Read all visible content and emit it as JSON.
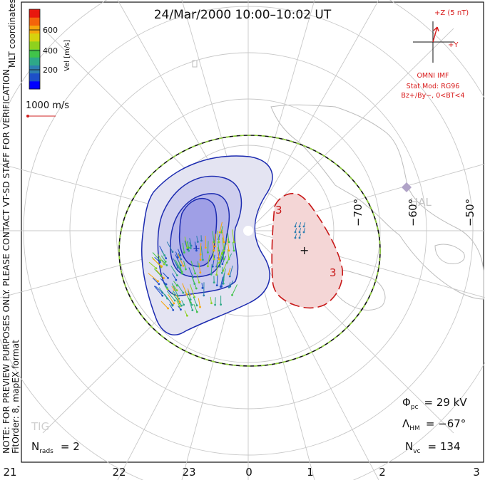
{
  "title": "24/Mar/2000 10:00–10:02 UT",
  "side_notes": {
    "mlt_coordinates": "MLT coordinates",
    "preview_note": "NOTE: FOR PREVIEW PURPOSES ONLY. PLEASE CONTACT VT-SD STAFF FOR VERIFICATION.",
    "fit_order": "FitOrder: 8, mapEX format"
  },
  "colorbar": {
    "label": "Vel [m/s]",
    "ticks": [
      "600",
      "400",
      "200"
    ],
    "colors": [
      "#0000ff",
      "#1d4fc8",
      "#2e7fb0",
      "#2ea888",
      "#41c34a",
      "#8ed11e",
      "#d6d20e",
      "#f5a60c",
      "#f4640b",
      "#e8180e"
    ]
  },
  "scale_vector": {
    "label": "1000 m/s",
    "color": "#d02020"
  },
  "imf": {
    "z_label": "+Z (5 nT)",
    "y_label": "+Y",
    "source": "OMNI IMF",
    "stat_mod": "Stat Mod: RG96",
    "condition": "Bz+/By−, 0<BT<4",
    "color": "#d81a1a"
  },
  "stations": {
    "hal": "HAL",
    "tig": "TIG"
  },
  "latitude_labels": [
    "−70°",
    "−60°",
    "−50°"
  ],
  "contour_labels": [
    "3",
    "3"
  ],
  "mlt_labels": [
    "21",
    "22",
    "23",
    "0",
    "1",
    "2",
    "3"
  ],
  "stats": {
    "phi_symbol": "Φ",
    "phi_sub": "pc",
    "phi_value": "= 29 kV",
    "lambda_symbol": "Λ",
    "lambda_sub": "HM",
    "lambda_value": "= −67°",
    "nvc_symbol": "N",
    "nvc_sub": "vc",
    "nvc_value": "= 134",
    "nrads_symbol": "N",
    "nrads_sub": "rads",
    "nrads_value": "= 2"
  },
  "colors": {
    "negative_cell": "#1c2bb0",
    "positive_cell": "#c81818",
    "land": "#d8d8d8",
    "grid": "#c8c8c8"
  }
}
